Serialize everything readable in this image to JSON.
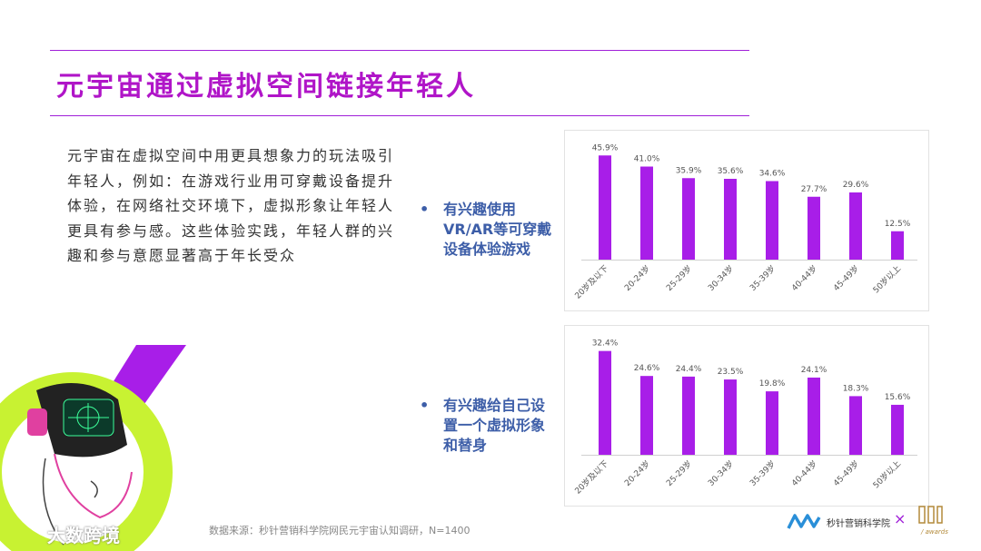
{
  "title": "元宇宙通过虚拟空间链接年轻人",
  "body_text": "元宇宙在虚拟空间中用更具想象力的玩法吸引年轻人，例如：在游戏行业用可穿戴设备提升体验，在网络社交环境下，虚拟形象让年轻人更具有参与感。这些体验实践，年轻人群的兴趣和参与意愿显著高于年长受众",
  "bullets": [
    {
      "dot": "•",
      "text": "有兴趣使用VR/AR等可穿戴设备体验游戏"
    },
    {
      "dot": "•",
      "text": "有兴趣给自己设置一个虚拟形象和替身"
    }
  ],
  "source": "数据来源：秒针营销科学院网民元宇宙认知调研，N=1400",
  "brand": {
    "name": "秒针营销科学院",
    "x": "×",
    "awards": "/ awards"
  },
  "watermark": "大数跨境",
  "colors": {
    "bar": "#a81ee8",
    "title": "#b015c8",
    "bullet": "#3d5ea8",
    "rule": "#a020d8",
    "lime": "#c8f232"
  },
  "chart_data": [
    {
      "type": "bar",
      "categories": [
        "20岁及以下",
        "20-24岁",
        "25-29岁",
        "30-34岁",
        "35-39岁",
        "40-44岁",
        "45-49岁",
        "50岁以上"
      ],
      "values": [
        45.9,
        41.0,
        35.9,
        35.6,
        34.6,
        27.7,
        29.6,
        12.5
      ],
      "data_labels": [
        "45.9%",
        "41.0%",
        "35.9%",
        "35.6%",
        "34.6%",
        "27.7%",
        "29.6%",
        "12.5%"
      ],
      "ylim": [
        0,
        48
      ],
      "grid": false,
      "legend": "none"
    },
    {
      "type": "bar",
      "categories": [
        "20岁及以下",
        "20-24岁",
        "25-29岁",
        "30-34岁",
        "35-39岁",
        "40-44岁",
        "45-49岁",
        "50岁以上"
      ],
      "values": [
        32.4,
        24.6,
        24.4,
        23.5,
        19.8,
        24.1,
        18.3,
        15.6
      ],
      "data_labels": [
        "32.4%",
        "24.6%",
        "24.4%",
        "23.5%",
        "19.8%",
        "24.1%",
        "18.3%",
        "15.6%"
      ],
      "ylim": [
        0,
        34
      ],
      "grid": false,
      "legend": "none"
    }
  ]
}
